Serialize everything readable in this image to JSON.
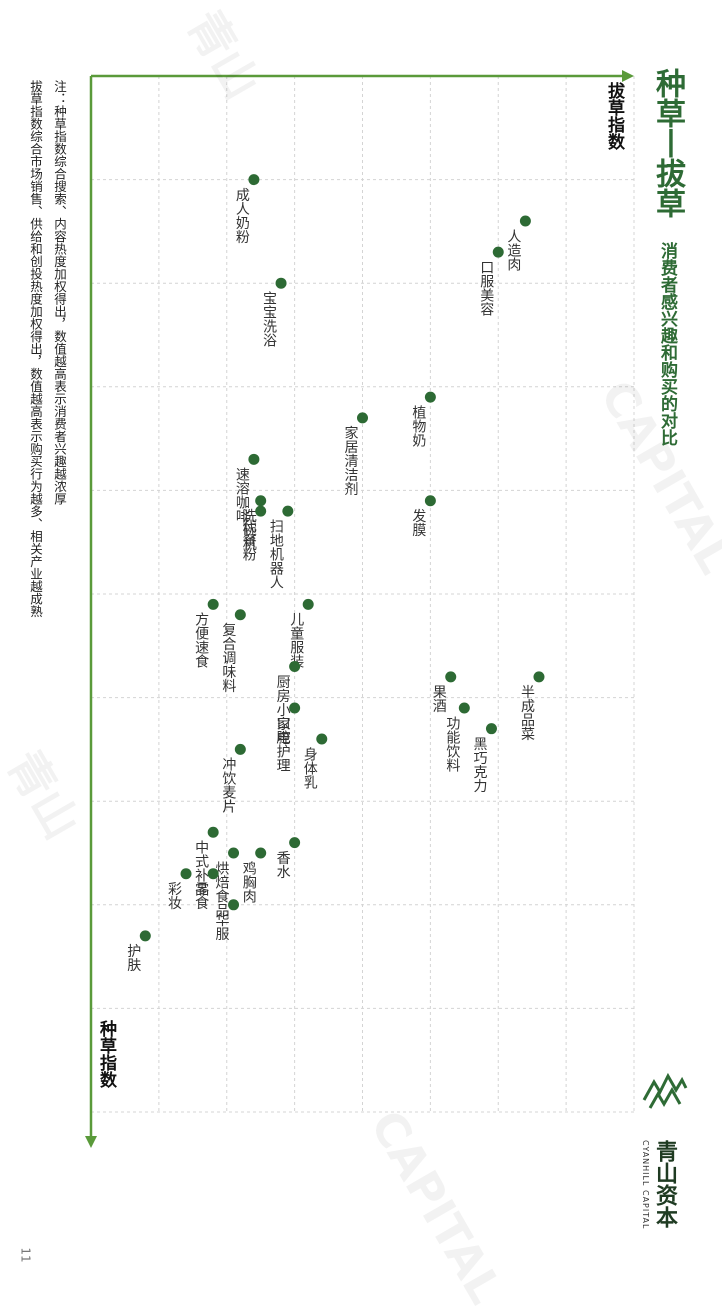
{
  "title": "种草丨拔草",
  "subtitle": "消费者感兴趣和购买的对比",
  "notes": [
    "注：种草指数综合搜索、内容热度加权得出，数值越高表示消费者兴趣越浓厚",
    "拔草指数综合市场销售、供给和创投热度加权得出，数值越高表示购买行为越多、相关产业越成熟"
  ],
  "page_number": "11",
  "logo": {
    "name": "青山资本",
    "name_en": "CYANHILL CAPITAL",
    "mark_icon": "mountain-logo-icon"
  },
  "watermark": [
    "青山",
    "CAPITAL",
    "青山"
  ],
  "colors": {
    "accent": "#2e6b35",
    "axis": "#5a9a3a",
    "point": "#2d6a34",
    "grid": "#d4d4d4"
  },
  "chart_data": {
    "type": "scatter",
    "xlabel": "种草指数",
    "ylabel": "拔草指数",
    "xlim": [
      0,
      10
    ],
    "ylim": [
      0,
      8
    ],
    "grid": true,
    "points": [
      {
        "label": "成人奶粉",
        "x": 1.0,
        "y": 5.6
      },
      {
        "label": "人造肉",
        "x": 1.4,
        "y": 1.6
      },
      {
        "label": "宝宝洗浴",
        "x": 2.0,
        "y": 5.2
      },
      {
        "label": "口服美容",
        "x": 1.7,
        "y": 2.0
      },
      {
        "label": "植物奶",
        "x": 3.1,
        "y": 3.0
      },
      {
        "label": "家居清洁剂",
        "x": 3.3,
        "y": 4.0
      },
      {
        "label": "速溶咖啡",
        "x": 3.7,
        "y": 5.6
      },
      {
        "label": "洗碗机",
        "x": 4.1,
        "y": 5.5
      },
      {
        "label": "扫地机器人",
        "x": 4.2,
        "y": 5.1
      },
      {
        "label": "代餐粉",
        "x": 4.2,
        "y": 5.5
      },
      {
        "label": "发膜",
        "x": 4.1,
        "y": 3.0
      },
      {
        "label": "方便速食",
        "x": 5.1,
        "y": 6.2
      },
      {
        "label": "儿童服装",
        "x": 5.1,
        "y": 4.8
      },
      {
        "label": "复合调味料",
        "x": 5.2,
        "y": 5.8
      },
      {
        "label": "厨房小家电",
        "x": 5.7,
        "y": 5.0
      },
      {
        "label": "果酒",
        "x": 5.8,
        "y": 2.7
      },
      {
        "label": "半成品菜",
        "x": 5.8,
        "y": 1.4
      },
      {
        "label": "功能饮料",
        "x": 6.1,
        "y": 2.5
      },
      {
        "label": "口腔护理",
        "x": 6.1,
        "y": 5.0
      },
      {
        "label": "黑巧克力",
        "x": 6.3,
        "y": 2.1
      },
      {
        "label": "身体乳",
        "x": 6.4,
        "y": 4.6
      },
      {
        "label": "冲饮麦片",
        "x": 6.5,
        "y": 5.8
      },
      {
        "label": "中式补品",
        "x": 7.3,
        "y": 6.2
      },
      {
        "label": "香水",
        "x": 7.4,
        "y": 5.0
      },
      {
        "label": "鸡胸肉",
        "x": 7.5,
        "y": 5.5
      },
      {
        "label": "烘焙食品",
        "x": 7.5,
        "y": 5.9
      },
      {
        "label": "零食",
        "x": 7.7,
        "y": 6.2
      },
      {
        "label": "彩妆",
        "x": 7.7,
        "y": 6.6
      },
      {
        "label": "华服",
        "x": 8.0,
        "y": 5.9
      },
      {
        "label": "护肤",
        "x": 8.3,
        "y": 7.2
      }
    ]
  }
}
